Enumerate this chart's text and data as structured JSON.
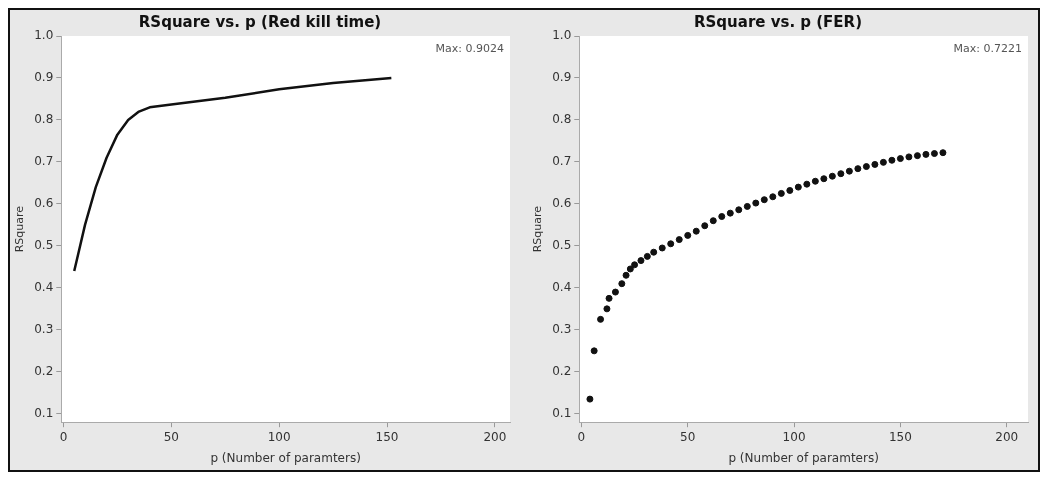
{
  "chart_data": [
    {
      "type": "line",
      "title": "RSquare vs. p (Red kill time)",
      "xlabel": "p (Number of paramters)",
      "ylabel": "RSquare",
      "annotations": [
        "Max: 0.9024"
      ],
      "x": [
        5,
        10,
        15,
        20,
        25,
        30,
        35,
        40,
        50,
        75,
        100,
        125,
        152
      ],
      "series": [
        {
          "color": "#111111",
          "values": [
            0.44,
            0.55,
            0.64,
            0.71,
            0.765,
            0.8,
            0.82,
            0.83,
            0.837,
            0.853,
            0.873,
            0.888,
            0.9
          ]
        }
      ],
      "xlim": [
        -1,
        207
      ],
      "xticks": [
        0,
        50,
        100,
        150,
        200
      ],
      "ylim": [
        0.08,
        1.0
      ],
      "yticks": [
        {
          "value": 0.1,
          "label": "0.1"
        },
        {
          "value": 0.2,
          "label": "0.2"
        },
        {
          "value": 0.3,
          "label": "0.3"
        },
        {
          "value": 0.4,
          "label": "0.4"
        },
        {
          "value": 0.5,
          "label": "0.5"
        },
        {
          "value": 0.6,
          "label": "0.6"
        },
        {
          "value": 0.7,
          "label": "0.7"
        },
        {
          "value": 0.8,
          "label": "0.8"
        },
        {
          "value": 0.9,
          "label": "0.9"
        },
        {
          "value": 1.0,
          "label": "1.0"
        }
      ],
      "marker": "none",
      "line_style": "solid"
    },
    {
      "type": "scatter",
      "title": "RSquare vs. p (FER)",
      "xlabel": "p (Number of paramters)",
      "ylabel": "RSquare",
      "annotations": [
        "Max: 0.7221"
      ],
      "x": [
        4,
        6,
        9,
        12,
        13,
        16,
        19,
        21,
        23,
        25,
        28,
        31,
        34,
        38,
        42,
        46,
        50,
        54,
        58,
        62,
        66,
        70,
        74,
        78,
        82,
        86,
        90,
        94,
        98,
        102,
        106,
        110,
        114,
        118,
        122,
        126,
        130,
        134,
        138,
        142,
        146,
        150,
        154,
        158,
        162,
        166,
        170
      ],
      "series": [
        {
          "color": "#111111",
          "values": [
            0.135,
            0.25,
            0.325,
            0.35,
            0.375,
            0.39,
            0.41,
            0.43,
            0.445,
            0.455,
            0.465,
            0.475,
            0.485,
            0.495,
            0.505,
            0.515,
            0.525,
            0.535,
            0.548,
            0.56,
            0.57,
            0.578,
            0.586,
            0.594,
            0.602,
            0.61,
            0.617,
            0.625,
            0.632,
            0.64,
            0.647,
            0.654,
            0.66,
            0.666,
            0.672,
            0.678,
            0.684,
            0.689,
            0.694,
            0.699,
            0.704,
            0.708,
            0.712,
            0.715,
            0.718,
            0.72,
            0.722
          ]
        }
      ],
      "xlim": [
        -1,
        210
      ],
      "xticks": [
        0,
        50,
        100,
        150,
        200
      ],
      "ylim": [
        0.08,
        1.0
      ],
      "yticks": [
        {
          "value": 0.1,
          "label": "0.1"
        },
        {
          "value": 0.2,
          "label": "0.2"
        },
        {
          "value": 0.3,
          "label": "0.3"
        },
        {
          "value": 0.4,
          "label": "0.4"
        },
        {
          "value": 0.5,
          "label": "0.5"
        },
        {
          "value": 0.6,
          "label": "0.6"
        },
        {
          "value": 0.7,
          "label": "0.7"
        },
        {
          "value": 0.8,
          "label": "0.8"
        },
        {
          "value": 0.9,
          "label": "0.9"
        },
        {
          "value": 1.0,
          "label": "1.0"
        }
      ],
      "marker": "circle"
    }
  ]
}
